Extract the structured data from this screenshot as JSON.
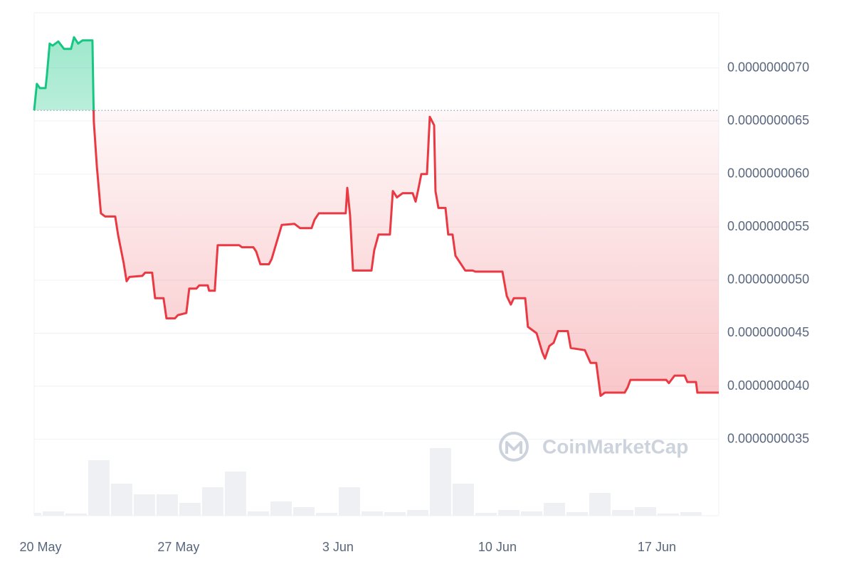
{
  "chart_data": {
    "type": "line",
    "x": [
      0.66,
      0.78,
      0.91,
      1.16,
      1.22,
      1.34,
      1.47,
      1.72,
      1.97,
      2.28,
      2.41,
      2.59,
      2.78,
      3.22,
      3.28,
      3.41,
      3.59,
      3.78,
      4.22,
      4.34,
      4.59,
      4.72,
      4.84,
      5.41,
      5.53,
      5.84,
      5.97,
      6.34,
      6.47,
      6.84,
      6.97,
      7.34,
      7.47,
      7.78,
      7.91,
      8.28,
      8.34,
      8.59,
      8.72,
      9.66,
      9.78,
      10.28,
      10.41,
      10.59,
      10.97,
      11.09,
      11.53,
      12.09,
      12.34,
      12.84,
      12.97,
      13.16,
      14.34,
      14.41,
      14.53,
      14.66,
      15.47,
      15.59,
      15.78,
      16.28,
      16.41,
      16.59,
      16.84,
      17.28,
      17.41,
      17.53,
      17.66,
      17.91,
      18.03,
      18.22,
      18.28,
      18.41,
      18.72,
      18.84,
      19.03,
      19.16,
      19.59,
      19.91,
      20.03,
      21.22,
      21.41,
      21.59,
      21.72,
      22.22,
      22.34,
      22.72,
      22.97,
      23.09,
      23.28,
      23.47,
      23.66,
      24.09,
      24.22,
      24.84,
      25.09,
      25.34,
      25.53,
      25.72,
      26.59,
      26.72,
      26.84,
      28.41,
      28.53,
      28.78,
      29.22,
      29.34,
      29.72,
      29.78,
      30.72
    ],
    "values": [
      6.6e-09,
      6.85e-09,
      6.81e-09,
      6.81e-09,
      6.93e-09,
      7.23e-09,
      7.21e-09,
      7.25e-09,
      7.18e-09,
      7.18e-09,
      7.29e-09,
      7.23e-09,
      7.26e-09,
      7.26e-09,
      6.5e-09,
      6.08e-09,
      5.63e-09,
      5.6e-09,
      5.6e-09,
      5.43e-09,
      5.16e-09,
      4.99e-09,
      5.03e-09,
      5.04e-09,
      5.07e-09,
      5.07e-09,
      4.83e-09,
      4.83e-09,
      4.64e-09,
      4.64e-09,
      4.67e-09,
      4.69e-09,
      4.92e-09,
      4.92e-09,
      4.95e-09,
      4.95e-09,
      4.9e-09,
      4.9e-09,
      5.33e-09,
      5.33e-09,
      5.31e-09,
      5.31e-09,
      5.27e-09,
      5.15e-09,
      5.15e-09,
      5.2e-09,
      5.52e-09,
      5.53e-09,
      5.49e-09,
      5.49e-09,
      5.57e-09,
      5.63e-09,
      5.63e-09,
      5.87e-09,
      5.61e-09,
      5.09e-09,
      5.09e-09,
      5.28e-09,
      5.43e-09,
      5.43e-09,
      5.84e-09,
      5.78e-09,
      5.82e-09,
      5.82e-09,
      5.74e-09,
      5.86e-09,
      6e-09,
      6e-09,
      6.54e-09,
      6.46e-09,
      5.84e-09,
      5.68e-09,
      5.68e-09,
      5.43e-09,
      5.43e-09,
      5.23e-09,
      5.09e-09,
      5.09e-09,
      5.08e-09,
      5.08e-09,
      4.85e-09,
      4.77e-09,
      4.83e-09,
      4.83e-09,
      4.56e-09,
      4.5e-09,
      4.32e-09,
      4.26e-09,
      4.38e-09,
      4.41e-09,
      4.52e-09,
      4.52e-09,
      4.36e-09,
      4.34e-09,
      4.22e-09,
      4.22e-09,
      3.91e-09,
      3.94e-09,
      3.94e-09,
      3.99e-09,
      4.06e-09,
      4.06e-09,
      4.03e-09,
      4.1e-09,
      4.1e-09,
      4.04e-09,
      4.04e-09,
      3.94e-09,
      3.94e-09
    ],
    "reference_line": 6.6e-09,
    "color_up": "#16c784",
    "color_down": "#ea3943",
    "xlim": [
      0.66,
      30.72
    ],
    "xticks": [
      {
        "value": 0,
        "label": "20 May"
      },
      {
        "value": 7,
        "label": "27 May"
      },
      {
        "value": 14,
        "label": "3 Jun"
      },
      {
        "value": 21,
        "label": "10 Jun"
      },
      {
        "value": 28,
        "label": "17 Jun"
      }
    ],
    "ylim": [
      2.78e-09,
      7.52e-09
    ],
    "yticks": [
      {
        "value": 3.5e-09,
        "label": "0.0000000035"
      },
      {
        "value": 4e-09,
        "label": "0.0000000040"
      },
      {
        "value": 4.5e-09,
        "label": "0.0000000045"
      },
      {
        "value": 5e-09,
        "label": "0.0000000050"
      },
      {
        "value": 5.5e-09,
        "label": "0.0000000055"
      },
      {
        "value": 6e-09,
        "label": "0.0000000060"
      },
      {
        "value": 6.5e-09,
        "label": "0.0000000065"
      },
      {
        "value": 7e-09,
        "label": "0.0000000070"
      }
    ],
    "grid": true,
    "volume": {
      "color": "#eef0f3",
      "x": [
        0,
        1,
        2,
        3,
        4,
        5,
        6,
        7,
        8,
        9,
        10,
        11,
        12,
        13,
        14,
        15,
        16,
        17,
        18,
        19,
        20,
        21,
        22,
        23,
        24,
        25,
        26,
        27,
        28,
        29
      ],
      "values": [
        4,
        6,
        3,
        78,
        45,
        30,
        30,
        18,
        40,
        62,
        6,
        20,
        12,
        4,
        40,
        6,
        5,
        8,
        95,
        45,
        4,
        8,
        6,
        18,
        5,
        32,
        8,
        12,
        3,
        5
      ],
      "ylim": [
        0,
        100
      ]
    },
    "watermark": "CoinMarketCap"
  }
}
